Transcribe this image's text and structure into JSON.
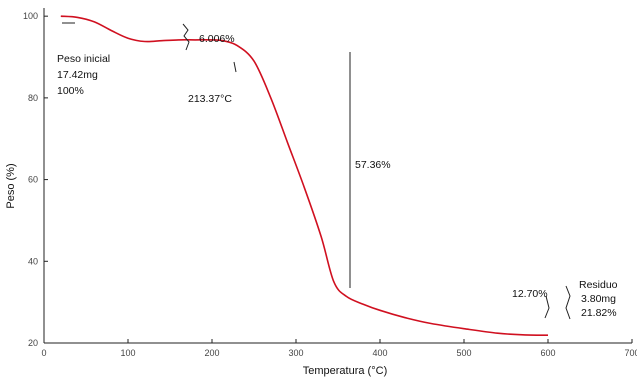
{
  "chart_data": {
    "type": "line",
    "title": "",
    "xlabel": "Temperatura (°C)",
    "ylabel": "Peso (%)",
    "xlim": [
      0,
      700
    ],
    "ylim": [
      20,
      102
    ],
    "x_ticks": [
      0,
      100,
      200,
      300,
      400,
      500,
      600,
      700
    ],
    "x_tick_labels": [
      "0",
      "100",
      "200",
      "300",
      "400",
      "500",
      "600",
      "700"
    ],
    "y_ticks": [
      20,
      40,
      60,
      80,
      100
    ],
    "y_tick_labels": [
      "20",
      "40",
      "60",
      "80",
      "100"
    ],
    "grid": false,
    "legend": "none",
    "line_color": "#d01020",
    "series": [
      {
        "x": [
          20,
          40,
          60,
          80,
          100,
          120,
          140,
          160,
          180,
          200,
          213,
          230,
          250,
          270,
          290,
          310,
          330,
          345,
          360,
          380,
          400,
          430,
          460,
          500,
          540,
          570,
          600
        ],
        "values": [
          100.0,
          99.7,
          98.6,
          96.5,
          94.6,
          93.8,
          94.0,
          94.2,
          94.2,
          94.2,
          94.0,
          92.8,
          89.0,
          80.0,
          69.0,
          58.0,
          46.0,
          35.0,
          31.4,
          29.5,
          28.0,
          26.2,
          24.8,
          23.5,
          22.4,
          22.0,
          21.9
        ]
      }
    ],
    "annotations": {
      "initial_label_lines": [
        "Peso inicial",
        "17.42mg",
        "100%"
      ],
      "first_loss": "6.006%",
      "onset_temp": "213.37°C",
      "main_loss": "57.36%",
      "late_loss": "12.70%",
      "residue_lines": [
        "Residuo",
        "3.80mg",
        "21.82%"
      ]
    }
  }
}
